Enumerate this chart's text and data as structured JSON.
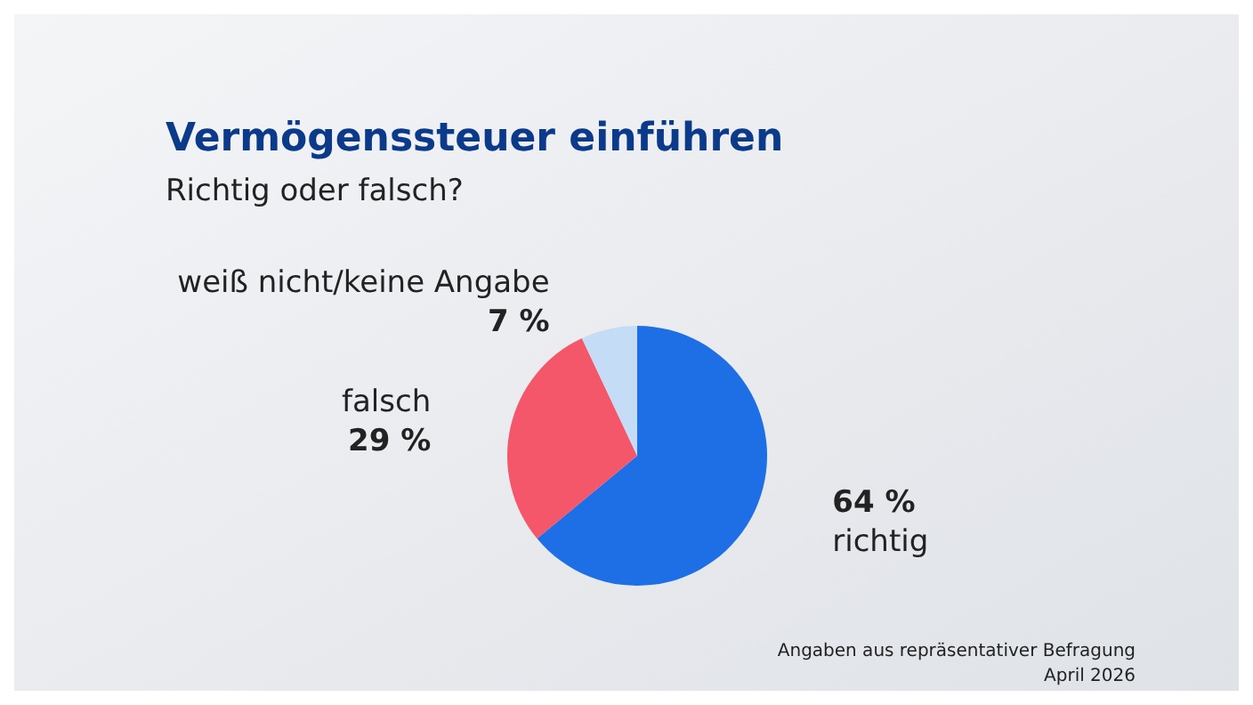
{
  "chart_data": {
    "type": "pie",
    "title": "Vermögenssteuer einführen",
    "subtitle": "Richtig oder falsch?",
    "categories": [
      "richtig",
      "falsch",
      "weiß nicht/keine Angabe"
    ],
    "values": [
      64,
      29,
      7
    ],
    "colors": [
      "#1e6fe6",
      "#f4566a",
      "#c5dcf7"
    ],
    "value_labels": [
      "64 %",
      "29 %",
      "7 %"
    ],
    "annotations": [
      "Angaben aus repräsentativer Befragung",
      "April 2026"
    ]
  }
}
